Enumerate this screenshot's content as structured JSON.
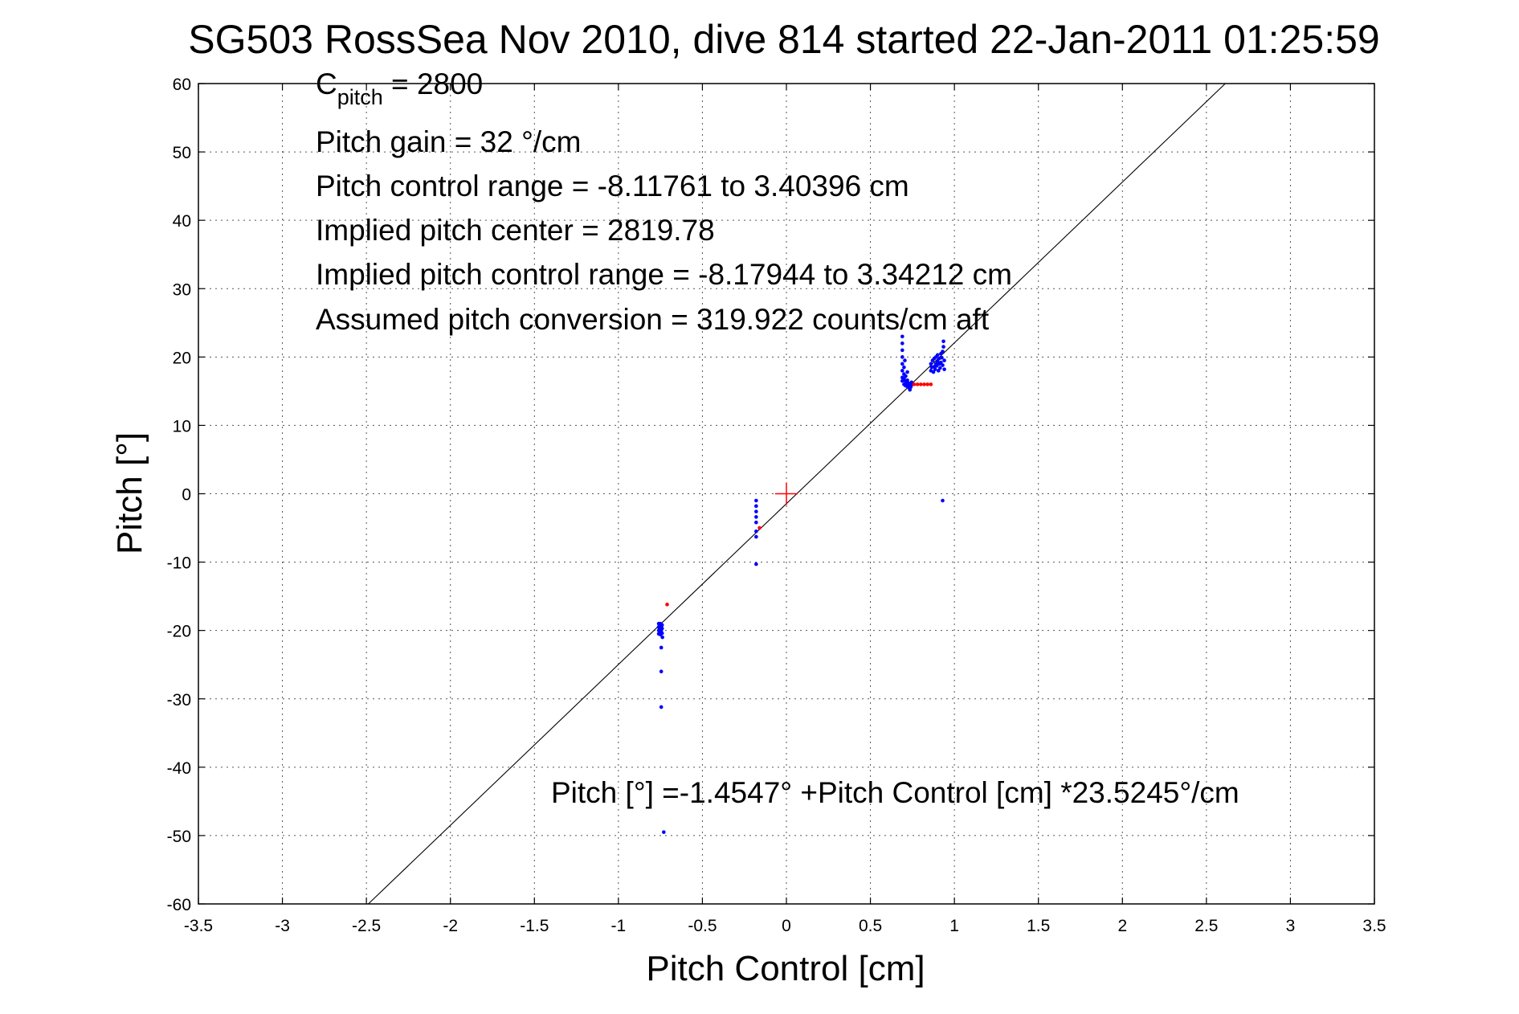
{
  "chart_data": {
    "type": "scatter",
    "title": "SG503 RossSea Nov 2010, dive 814 started 22-Jan-2011 01:25:59",
    "xlabel": "Pitch Control [cm]",
    "ylabel": "Pitch [°]",
    "xlim": [
      -3.5,
      3.5
    ],
    "ylim": [
      -60,
      60
    ],
    "x_ticks": [
      -3.5,
      -3,
      -2.5,
      -2,
      -1.5,
      -1,
      -0.5,
      0,
      0.5,
      1,
      1.5,
      2,
      2.5,
      3,
      3.5
    ],
    "x_tick_labels": [
      "-3.5",
      "-3",
      "-2.5",
      "-2",
      "-1.5",
      "-1",
      "-0.5",
      "0",
      "0.5",
      "1",
      "1.5",
      "2",
      "2.5",
      "3",
      "3.5"
    ],
    "y_ticks": [
      -60,
      -50,
      -40,
      -30,
      -20,
      -10,
      0,
      10,
      20,
      30,
      40,
      50,
      60
    ],
    "y_tick_labels": [
      "-60",
      "-50",
      "-40",
      "-30",
      "-20",
      "-10",
      "0",
      "10",
      "20",
      "30",
      "40",
      "50",
      "60"
    ],
    "grid": true,
    "annotations": {
      "c_pitch_main": "C",
      "c_pitch_sub": "pitch",
      "c_pitch_value": " = 2800",
      "lines": [
        "Pitch gain = 32 °/cm",
        "Pitch control range = -8.11761 to 3.40396 cm",
        "Implied pitch center = 2819.78",
        "Implied pitch control range = -8.17944 to 3.34212 cm",
        "Assumed pitch conversion = 319.922 counts/cm aft"
      ],
      "equation": "Pitch [°] =-1.4547° +Pitch Control [cm] *23.5245°/cm"
    },
    "fit_line": {
      "intercept": -1.4547,
      "slope": 23.5245
    },
    "center_marker": {
      "x": 0,
      "y": 0,
      "color": "#ff0000"
    },
    "series": [
      {
        "color": "#0000ff",
        "points": [
          [
            -0.76,
            -19.0
          ],
          [
            -0.76,
            -19.5
          ],
          [
            -0.76,
            -20.0
          ],
          [
            -0.76,
            -20.5
          ],
          [
            -0.755,
            -19.3
          ],
          [
            -0.755,
            -20.2
          ],
          [
            -0.75,
            -19.0
          ],
          [
            -0.75,
            -19.8
          ],
          [
            -0.75,
            -20.6
          ],
          [
            -0.745,
            -19.5
          ],
          [
            -0.745,
            -20.0
          ],
          [
            -0.74,
            -19.2
          ],
          [
            -0.74,
            -20.4
          ],
          [
            -0.74,
            -19.7
          ],
          [
            -0.738,
            -21.0
          ],
          [
            -0.745,
            -22.5
          ],
          [
            -0.745,
            -26.0
          ],
          [
            -0.745,
            -31.2
          ],
          [
            -0.73,
            -49.5
          ],
          [
            -0.18,
            -1.0
          ],
          [
            -0.18,
            -1.8
          ],
          [
            -0.18,
            -2.6
          ],
          [
            -0.18,
            -3.4
          ],
          [
            -0.18,
            -4.2
          ],
          [
            -0.18,
            -5.5
          ],
          [
            -0.18,
            -6.3
          ],
          [
            -0.18,
            -10.3
          ],
          [
            0.69,
            23.0
          ],
          [
            0.69,
            22.0
          ],
          [
            0.69,
            21.0
          ],
          [
            0.69,
            20.0
          ],
          [
            0.69,
            19.0
          ],
          [
            0.69,
            18.0
          ],
          [
            0.69,
            17.0
          ],
          [
            0.69,
            16.5
          ],
          [
            0.7,
            16.0
          ],
          [
            0.7,
            16.8
          ],
          [
            0.7,
            17.5
          ],
          [
            0.7,
            18.5
          ],
          [
            0.705,
            19.5
          ],
          [
            0.71,
            15.8
          ],
          [
            0.71,
            16.4
          ],
          [
            0.71,
            17.2
          ],
          [
            0.715,
            16.0
          ],
          [
            0.72,
            15.7
          ],
          [
            0.72,
            16.6
          ],
          [
            0.72,
            17.8
          ],
          [
            0.725,
            16.2
          ],
          [
            0.73,
            15.5
          ],
          [
            0.73,
            16.0
          ],
          [
            0.735,
            15.2
          ],
          [
            0.74,
            15.6
          ],
          [
            0.745,
            16.3
          ],
          [
            0.75,
            16.0
          ],
          [
            0.86,
            18.0
          ],
          [
            0.86,
            19.0
          ],
          [
            0.865,
            18.5
          ],
          [
            0.87,
            19.5
          ],
          [
            0.875,
            17.8
          ],
          [
            0.88,
            18.6
          ],
          [
            0.88,
            19.8
          ],
          [
            0.885,
            18.2
          ],
          [
            0.89,
            19.0
          ],
          [
            0.89,
            20.0
          ],
          [
            0.895,
            18.7
          ],
          [
            0.9,
            19.4
          ],
          [
            0.9,
            20.3
          ],
          [
            0.905,
            18.0
          ],
          [
            0.91,
            19.0
          ],
          [
            0.91,
            19.8
          ],
          [
            0.915,
            18.4
          ],
          [
            0.92,
            20.5
          ],
          [
            0.92,
            19.2
          ],
          [
            0.925,
            19.9
          ],
          [
            0.93,
            18.8
          ],
          [
            0.93,
            20.8
          ],
          [
            0.935,
            21.5
          ],
          [
            0.935,
            22.3
          ],
          [
            0.94,
            19.5
          ],
          [
            0.94,
            18.2
          ],
          [
            0.93,
            -1.0
          ]
        ]
      },
      {
        "color": "#ff0000",
        "points": [
          [
            -0.71,
            -16.2
          ],
          [
            -0.16,
            -5.0
          ],
          [
            0.76,
            16.0
          ],
          [
            0.78,
            16.0
          ],
          [
            0.8,
            16.0
          ],
          [
            0.82,
            16.0
          ],
          [
            0.84,
            16.0
          ],
          [
            0.86,
            16.0
          ]
        ]
      }
    ]
  }
}
